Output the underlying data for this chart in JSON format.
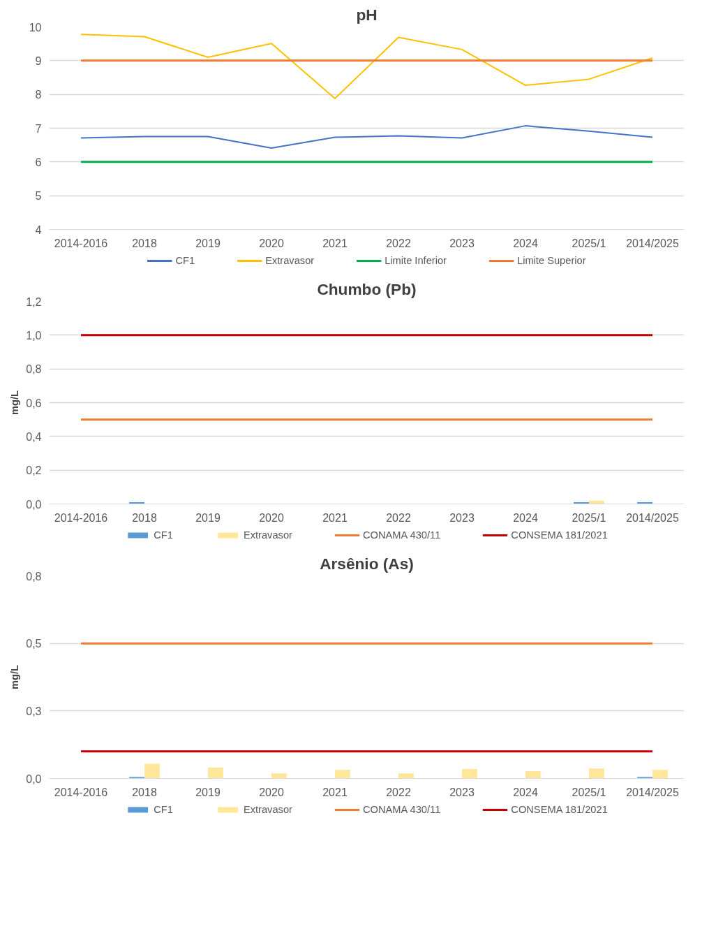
{
  "chart_data": [
    {
      "type": "line",
      "title": "pH",
      "categories": [
        "2014-2016",
        "2018",
        "2019",
        "2020",
        "2021",
        "2022",
        "2023",
        "2024",
        "2025/1",
        "2014/2025"
      ],
      "ylim": [
        4,
        10
      ],
      "yticks": [
        4,
        5,
        6,
        7,
        8,
        9,
        10
      ],
      "grid": "y",
      "legend": "bottom",
      "series": [
        {
          "name": "CF1",
          "color": "#4472c4",
          "values": [
            6.71,
            6.75,
            6.75,
            6.41,
            6.73,
            6.77,
            6.71,
            7.07,
            6.91,
            6.73
          ]
        },
        {
          "name": "Extravasor",
          "color": "#ffc000",
          "values": [
            9.78,
            9.71,
            9.1,
            9.51,
            7.88,
            9.69,
            9.33,
            8.27,
            8.45,
            9.08
          ]
        },
        {
          "name": "Limite Inferior",
          "color": "#00b050",
          "values": [
            6,
            6,
            6,
            6,
            6,
            6,
            6,
            6,
            6,
            6
          ]
        },
        {
          "name": "Limite Superior",
          "color": "#ed7d31",
          "values": [
            9,
            9,
            9,
            9,
            9,
            9,
            9,
            9,
            9,
            9
          ]
        }
      ]
    },
    {
      "type": "bar",
      "title": "Chumbo (Pb)",
      "ylabel": "mg/L",
      "categories": [
        "2014-2016",
        "2018",
        "2019",
        "2020",
        "2021",
        "2022",
        "2023",
        "2024",
        "2025/1",
        "2014/2025"
      ],
      "ylim": [
        0,
        1.2
      ],
      "yticks": [
        {
          "value": 0,
          "label": "0,0"
        },
        {
          "value": 0.2,
          "label": "0,2"
        },
        {
          "value": 0.4,
          "label": "0,4"
        },
        {
          "value": 0.6,
          "label": "0,6"
        },
        {
          "value": 0.8,
          "label": "0,8"
        },
        {
          "value": 1.0,
          "label": "1,0"
        },
        {
          "value": 1.2,
          "label": "1,2"
        }
      ],
      "grid": "y",
      "legend": "bottom",
      "series": [
        {
          "name": "CF1",
          "color": "#5b9bd5",
          "values": [
            null,
            0.01,
            null,
            null,
            null,
            null,
            null,
            null,
            0.01,
            0.01
          ]
        },
        {
          "name": "Extravasor",
          "color": "#ffe699",
          "values": [
            null,
            null,
            null,
            null,
            null,
            null,
            null,
            null,
            0.02,
            null
          ]
        },
        {
          "name": "CONAMA 430/11",
          "type": "line",
          "color": "#ed7d31",
          "values": [
            0.5,
            0.5,
            0.5,
            0.5,
            0.5,
            0.5,
            0.5,
            0.5,
            0.5,
            0.5
          ]
        },
        {
          "name": "CONSEMA 181/2021",
          "type": "line",
          "color": "#c00000",
          "values": [
            1.0,
            1.0,
            1.0,
            1.0,
            1.0,
            1.0,
            1.0,
            1.0,
            1.0,
            1.0
          ]
        }
      ]
    },
    {
      "type": "bar",
      "title": "Arsênio (As)",
      "ylabel": "mg/L",
      "categories": [
        "2014-2016",
        "2018",
        "2019",
        "2020",
        "2021",
        "2022",
        "2023",
        "2024",
        "2025/1",
        "2014/2025"
      ],
      "ylim": [
        0,
        0.75
      ],
      "yticks": [
        {
          "value": 0,
          "label": "0,0"
        },
        {
          "value": 0.25,
          "label": "0,3"
        },
        {
          "value": 0.5,
          "label": "0,5"
        },
        {
          "value": 0.75,
          "label": "0,8"
        }
      ],
      "grid": "y",
      "legend": "bottom",
      "series": [
        {
          "name": "CF1",
          "color": "#5b9bd5",
          "values": [
            null,
            0.005,
            null,
            null,
            null,
            null,
            null,
            null,
            null,
            0.005
          ]
        },
        {
          "name": "Extravasor",
          "color": "#ffe699",
          "values": [
            null,
            0.054,
            0.04,
            0.019,
            0.032,
            0.019,
            0.035,
            0.027,
            0.037,
            0.032
          ]
        },
        {
          "name": "CONAMA 430/11",
          "type": "line",
          "color": "#ed7d31",
          "values": [
            0.5,
            0.5,
            0.5,
            0.5,
            0.5,
            0.5,
            0.5,
            0.5,
            0.5,
            0.5
          ]
        },
        {
          "name": "CONSEMA 181/2021",
          "type": "line",
          "color": "#c00000",
          "values": [
            0.1,
            0.1,
            0.1,
            0.1,
            0.1,
            0.1,
            0.1,
            0.1,
            0.1,
            0.1
          ]
        }
      ]
    }
  ]
}
